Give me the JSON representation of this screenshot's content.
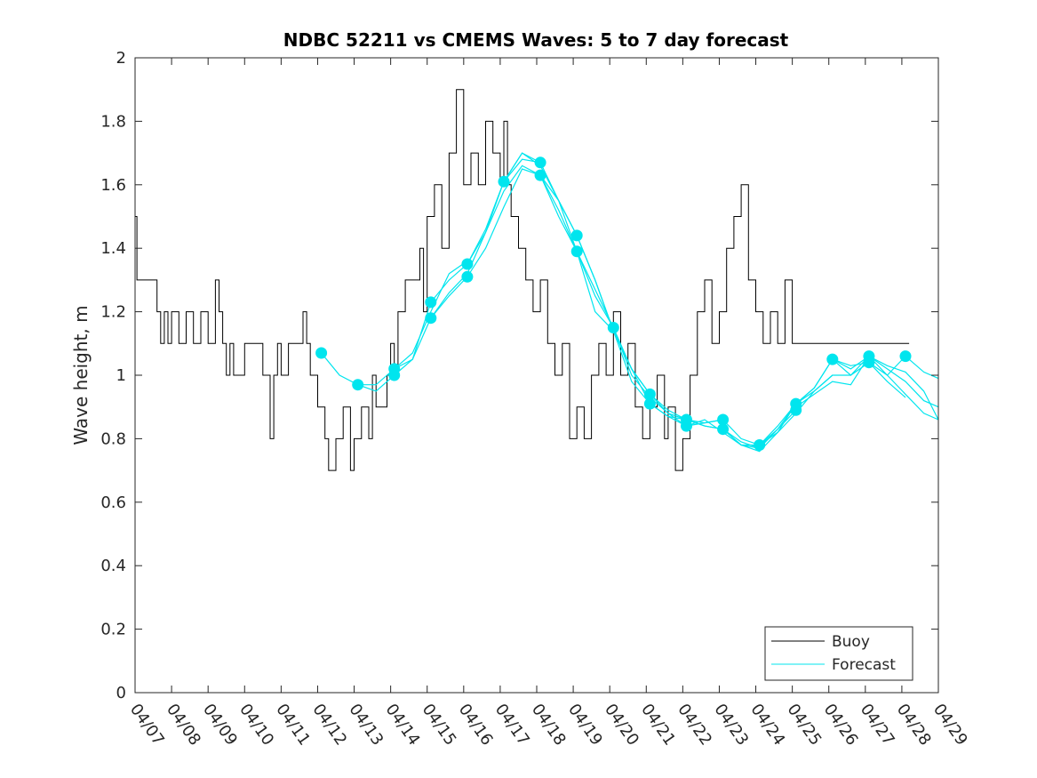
{
  "chart_data": {
    "type": "line",
    "title": "NDBC 52211 vs CMEMS Waves: 5 to 7 day forecast",
    "xlabel": "",
    "ylabel": "Wave height, m",
    "x_tick_labels": [
      "04/07",
      "04/08",
      "04/09",
      "04/10",
      "04/11",
      "04/12",
      "04/13",
      "04/14",
      "04/15",
      "04/16",
      "04/17",
      "04/18",
      "04/19",
      "04/20",
      "04/21",
      "04/22",
      "04/23",
      "04/24",
      "04/25",
      "04/26",
      "04/27",
      "04/28",
      "04/29"
    ],
    "xlim_days": [
      0,
      22
    ],
    "ylim": [
      0,
      2
    ],
    "y_ticks": [
      0,
      0.2,
      0.4,
      0.6,
      0.8,
      1,
      1.2,
      1.4,
      1.6,
      1.8,
      2
    ],
    "grid": false,
    "legend_position": "bottom-right",
    "colors": {
      "buoy": "#000000",
      "forecast": "#00e5ee"
    },
    "buoy": {
      "name": "Buoy",
      "day": [
        0,
        0.05,
        0.15,
        0.5,
        0.6,
        0.7,
        0.8,
        0.9,
        1.0,
        1.2,
        1.4,
        1.6,
        1.8,
        2.0,
        2.2,
        2.3,
        2.4,
        2.5,
        2.6,
        2.7,
        3.0,
        3.5,
        3.7,
        3.8,
        3.9,
        4.0,
        4.2,
        4.4,
        4.6,
        4.7,
        4.8,
        5.0,
        5.2,
        5.3,
        5.5,
        5.7,
        5.9,
        6.0,
        6.2,
        6.4,
        6.5,
        6.6,
        6.8,
        6.9,
        7.0,
        7.1,
        7.2,
        7.4,
        7.6,
        7.8,
        7.9,
        8.0,
        8.2,
        8.4,
        8.6,
        8.8,
        9.0,
        9.2,
        9.4,
        9.6,
        9.8,
        10.0,
        10.1,
        10.2,
        10.3,
        10.5,
        10.7,
        10.9,
        11.1,
        11.3,
        11.5,
        11.7,
        11.9,
        12.1,
        12.3,
        12.5,
        12.7,
        12.9,
        13.1,
        13.3,
        13.5,
        13.7,
        13.9,
        14.1,
        14.3,
        14.5,
        14.6,
        14.8,
        15.0,
        15.2,
        15.4,
        15.6,
        15.8,
        16.0,
        16.2,
        16.4,
        16.6,
        16.8,
        17.0,
        17.2,
        17.4,
        17.6,
        17.8,
        18.0,
        18.2,
        18.4,
        18.6,
        18.8,
        19.0,
        19.2,
        19.4,
        19.5,
        19.6,
        19.8,
        20.0,
        20.2,
        20.4,
        20.6,
        20.8,
        21.0,
        21.2
      ],
      "value": [
        1.5,
        1.3,
        1.3,
        1.3,
        1.2,
        1.1,
        1.2,
        1.1,
        1.2,
        1.1,
        1.2,
        1.1,
        1.2,
        1.1,
        1.3,
        1.2,
        1.1,
        1.0,
        1.1,
        1.0,
        1.1,
        1.0,
        0.8,
        1.0,
        1.1,
        1.0,
        1.1,
        1.1,
        1.2,
        1.1,
        1.0,
        0.9,
        0.8,
        0.7,
        0.8,
        0.9,
        0.7,
        0.8,
        0.9,
        0.8,
        1.0,
        0.9,
        0.9,
        1.0,
        1.1,
        1.0,
        1.2,
        1.3,
        1.3,
        1.4,
        1.2,
        1.5,
        1.6,
        1.4,
        1.7,
        1.9,
        1.6,
        1.7,
        1.6,
        1.8,
        1.7,
        1.6,
        1.8,
        1.6,
        1.5,
        1.4,
        1.3,
        1.2,
        1.3,
        1.1,
        1.0,
        1.1,
        0.8,
        0.9,
        0.8,
        1.0,
        1.1,
        1.0,
        1.2,
        1.0,
        1.1,
        0.9,
        0.8,
        0.9,
        1.0,
        0.8,
        0.9,
        0.7,
        0.8,
        1.0,
        1.2,
        1.3,
        1.1,
        1.2,
        1.4,
        1.5,
        1.6,
        1.3,
        1.2,
        1.1,
        1.2,
        1.1,
        1.3,
        1.1,
        1.1,
        1.1,
        1.1,
        1.1,
        1.1,
        1.1,
        1.1,
        1.1,
        1.1,
        1.1,
        1.1,
        1.1,
        1.1,
        1.1,
        1.1,
        1.1,
        1.1
      ]
    },
    "forecast": {
      "name": "Forecast",
      "series": [
        {
          "day": [
            5.1,
            5.6,
            6.1,
            6.6,
            7.1,
            7.6,
            8.1,
            8.6,
            9.1
          ],
          "value": [
            1.07,
            1.0,
            0.97,
            0.97,
            1.02,
            1.07,
            1.2,
            1.32,
            1.36
          ]
        },
        {
          "day": [
            6.1,
            6.6,
            7.1,
            7.6,
            8.1,
            8.6,
            9.1,
            9.6,
            10.1,
            10.6,
            11.1
          ],
          "value": [
            0.97,
            0.95,
            1.0,
            1.05,
            1.18,
            1.26,
            1.32,
            1.45,
            1.61,
            1.7,
            1.67
          ]
        },
        {
          "day": [
            7.1,
            7.6,
            8.1,
            8.6,
            9.1,
            9.6,
            10.1,
            10.6,
            11.1,
            11.6,
            12.1
          ],
          "value": [
            1.02,
            1.05,
            1.23,
            1.3,
            1.35,
            1.45,
            1.58,
            1.66,
            1.63,
            1.55,
            1.44
          ]
        },
        {
          "day": [
            8.1,
            8.6,
            9.1,
            9.6,
            10.1,
            10.6,
            11.1,
            11.6,
            12.1,
            12.6,
            13.1
          ],
          "value": [
            1.18,
            1.25,
            1.31,
            1.4,
            1.53,
            1.65,
            1.63,
            1.5,
            1.39,
            1.25,
            1.15
          ]
        },
        {
          "day": [
            9.1,
            9.6,
            10.1,
            10.6,
            11.1,
            11.6,
            12.1,
            12.6,
            13.1,
            13.6,
            14.1
          ],
          "value": [
            1.35,
            1.46,
            1.61,
            1.7,
            1.66,
            1.55,
            1.44,
            1.3,
            1.14,
            1.02,
            0.94
          ]
        },
        {
          "day": [
            10.1,
            10.6,
            11.1,
            11.6,
            12.1,
            12.6,
            13.1,
            13.6,
            14.1,
            14.6,
            15.1
          ],
          "value": [
            1.61,
            1.68,
            1.67,
            1.55,
            1.39,
            1.2,
            1.14,
            0.98,
            0.91,
            0.87,
            0.86
          ]
        },
        {
          "day": [
            11.1,
            11.6,
            12.1,
            12.6,
            13.1,
            13.6,
            14.1,
            14.6,
            15.1,
            15.6,
            16.1
          ],
          "value": [
            1.63,
            1.52,
            1.39,
            1.27,
            1.15,
            1.0,
            0.93,
            0.88,
            0.84,
            0.85,
            0.86
          ]
        },
        {
          "day": [
            12.1,
            12.6,
            13.1,
            13.6,
            14.1,
            14.6,
            15.1,
            15.6,
            16.1,
            16.6,
            17.1
          ],
          "value": [
            1.44,
            1.3,
            1.14,
            1.02,
            0.94,
            0.88,
            0.86,
            0.84,
            0.83,
            0.79,
            0.77
          ]
        },
        {
          "day": [
            13.1,
            13.6,
            14.1,
            14.6,
            15.1,
            15.6,
            16.1,
            16.6,
            17.1,
            17.6,
            18.1
          ],
          "value": [
            1.15,
            1.02,
            0.91,
            0.87,
            0.84,
            0.86,
            0.82,
            0.78,
            0.77,
            0.83,
            0.89
          ]
        },
        {
          "day": [
            14.1,
            14.6,
            15.1,
            15.6,
            16.1,
            16.6,
            17.1,
            17.6,
            18.1,
            18.6,
            19.1
          ],
          "value": [
            0.94,
            0.89,
            0.86,
            0.85,
            0.86,
            0.8,
            0.78,
            0.83,
            0.91,
            0.95,
            1.0
          ]
        },
        {
          "day": [
            15.1,
            15.6,
            16.1,
            16.6,
            17.1,
            17.6,
            18.1,
            18.6,
            19.1,
            19.6,
            20.1
          ],
          "value": [
            0.86,
            0.84,
            0.83,
            0.78,
            0.78,
            0.82,
            0.91,
            0.96,
            1.05,
            1.02,
            1.06
          ]
        },
        {
          "day": [
            16.1,
            16.6,
            17.1,
            17.6,
            18.1,
            18.6,
            19.1,
            19.6,
            20.1,
            20.6,
            21.1
          ],
          "value": [
            0.83,
            0.78,
            0.76,
            0.82,
            0.88,
            0.95,
            1.0,
            1.0,
            1.04,
            0.98,
            0.93
          ]
        },
        {
          "day": [
            17.1,
            17.6,
            18.1,
            18.6,
            19.1,
            19.6,
            20.1,
            20.6,
            21.1,
            21.6,
            22.0
          ],
          "value": [
            0.78,
            0.84,
            0.91,
            0.96,
            1.05,
            1.03,
            1.04,
            1.0,
            1.06,
            1.01,
            0.99
          ]
        },
        {
          "day": [
            18.1,
            18.6,
            19.1,
            19.6,
            20.1,
            20.6,
            21.1,
            21.6,
            22.0
          ],
          "value": [
            0.9,
            0.94,
            0.98,
            0.97,
            1.06,
            1.02,
            0.98,
            0.92,
            0.9
          ]
        },
        {
          "day": [
            19.1,
            19.6,
            20.1,
            20.6,
            21.1,
            21.6,
            22.0
          ],
          "value": [
            1.05,
            1.0,
            1.06,
            1.0,
            0.94,
            0.88,
            0.86
          ]
        },
        {
          "day": [
            20.1,
            20.6,
            21.1,
            21.6,
            22.0
          ],
          "value": [
            1.06,
            1.03,
            1.01,
            0.95,
            0.86
          ]
        }
      ],
      "markers": {
        "day": [
          5.1,
          6.1,
          7.1,
          7.1,
          8.1,
          8.1,
          9.1,
          9.1,
          10.1,
          11.1,
          11.1,
          12.1,
          12.1,
          13.1,
          14.1,
          14.1,
          15.1,
          15.1,
          16.1,
          16.1,
          17.1,
          18.1,
          18.1,
          19.1,
          20.1,
          20.1,
          21.1
        ],
        "value": [
          1.07,
          0.97,
          1.02,
          1.0,
          1.23,
          1.18,
          1.35,
          1.31,
          1.61,
          1.67,
          1.63,
          1.44,
          1.39,
          1.15,
          0.94,
          0.91,
          0.86,
          0.84,
          0.86,
          0.83,
          0.78,
          0.91,
          0.89,
          1.05,
          1.06,
          1.04,
          1.06
        ]
      }
    }
  }
}
